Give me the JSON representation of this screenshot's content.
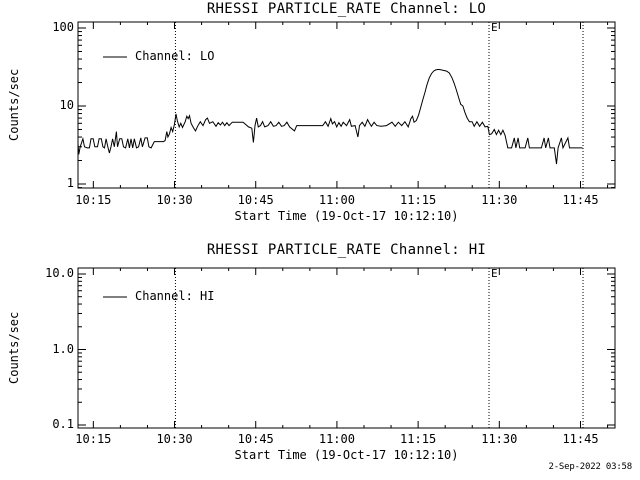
{
  "app": {
    "timestamp": "2-Sep-2022 03:58",
    "colors": {
      "background": "#ffffff",
      "foreground": "#000000"
    }
  },
  "chart_data": [
    {
      "type": "line",
      "title": "RHESSI PARTICLE_RATE Channel: LO",
      "ylabel": "Counts/sec",
      "xlabel": "Start Time (19-Oct-17 10:12:10)",
      "yscale": "log",
      "ylim": [
        1,
        100
      ],
      "grid": false,
      "legend": {
        "label": "Channel: LO",
        "position": "top-left"
      },
      "x_start_time": "10:12:10",
      "x_minor_step_minutes": 5,
      "x_ticks": [
        {
          "t": 2.833,
          "label": "10:15"
        },
        {
          "t": 17.833,
          "label": "10:30"
        },
        {
          "t": 32.833,
          "label": "10:45"
        },
        {
          "t": 47.833,
          "label": "11:00"
        },
        {
          "t": 62.833,
          "label": "11:15"
        },
        {
          "t": 77.833,
          "label": "11:30"
        },
        {
          "t": 92.833,
          "label": "11:45"
        }
      ],
      "y_ticks": [
        {
          "v": 100,
          "label": "100"
        },
        {
          "v": 10,
          "label": "10"
        },
        {
          "v": 1,
          "label": "1"
        }
      ],
      "event_lines": [
        {
          "t": 18.0,
          "flag": ""
        },
        {
          "t": 75.93,
          "flag": "E"
        },
        {
          "t": 93.3,
          "flag": ""
        }
      ],
      "series": [
        {
          "name": "Channel: LO",
          "points": [
            [
              0.0,
              3.3
            ],
            [
              0.15,
              2.4
            ],
            [
              0.4,
              3.0
            ],
            [
              0.9,
              3.8
            ],
            [
              1.2,
              3.0
            ],
            [
              1.7,
              2.9
            ],
            [
              2.1,
              2.9
            ],
            [
              2.4,
              3.8
            ],
            [
              2.8,
              3.8
            ],
            [
              3.1,
              3.0
            ],
            [
              3.6,
              3.0
            ],
            [
              3.9,
              3.8
            ],
            [
              4.3,
              3.8
            ],
            [
              4.6,
              3.0
            ],
            [
              4.9,
              2.9
            ],
            [
              5.2,
              3.8
            ],
            [
              5.5,
              3.0
            ],
            [
              5.8,
              2.5
            ],
            [
              6.1,
              3.0
            ],
            [
              6.4,
              3.8
            ],
            [
              6.7,
              3.0
            ],
            [
              7.1,
              4.7
            ],
            [
              7.3,
              3.0
            ],
            [
              7.7,
              3.8
            ],
            [
              8.1,
              3.8
            ],
            [
              8.4,
              3.0
            ],
            [
              8.8,
              2.9
            ],
            [
              9.2,
              3.8
            ],
            [
              9.5,
              2.9
            ],
            [
              9.8,
              3.8
            ],
            [
              10.1,
              2.9
            ],
            [
              10.4,
              3.8
            ],
            [
              10.8,
              2.9
            ],
            [
              11.2,
              3.0
            ],
            [
              11.6,
              3.9
            ],
            [
              11.9,
              3.0
            ],
            [
              12.4,
              3.9
            ],
            [
              12.8,
              3.9
            ],
            [
              13.1,
              3.0
            ],
            [
              13.5,
              2.9
            ],
            [
              14.1,
              3.5
            ],
            [
              15.0,
              3.5
            ],
            [
              15.8,
              3.5
            ],
            [
              16.1,
              3.6
            ],
            [
              16.4,
              4.7
            ],
            [
              16.6,
              4.0
            ],
            [
              16.9,
              4.4
            ],
            [
              17.2,
              5.3
            ],
            [
              17.5,
              4.7
            ],
            [
              17.8,
              5.8
            ],
            [
              18.1,
              7.9
            ],
            [
              18.35,
              6.5
            ],
            [
              18.7,
              5.4
            ],
            [
              19.0,
              6.0
            ],
            [
              19.3,
              5.3
            ],
            [
              19.8,
              6.3
            ],
            [
              20.1,
              7.4
            ],
            [
              20.35,
              6.9
            ],
            [
              20.6,
              7.5
            ],
            [
              20.9,
              6.0
            ],
            [
              21.3,
              5.3
            ],
            [
              21.7,
              4.8
            ],
            [
              22.1,
              5.5
            ],
            [
              22.6,
              6.3
            ],
            [
              23.1,
              5.6
            ],
            [
              23.6,
              6.7
            ],
            [
              23.9,
              7.0
            ],
            [
              24.3,
              6.0
            ],
            [
              24.9,
              6.3
            ],
            [
              25.5,
              5.5
            ],
            [
              25.9,
              6.1
            ],
            [
              26.3,
              5.7
            ],
            [
              26.7,
              6.2
            ],
            [
              27.1,
              5.6
            ],
            [
              27.5,
              6.1
            ],
            [
              27.9,
              5.6
            ],
            [
              28.5,
              6.2
            ],
            [
              30.5,
              6.2
            ],
            [
              31.5,
              5.4
            ],
            [
              32.1,
              5.2
            ],
            [
              32.4,
              3.4
            ],
            [
              32.7,
              5.6
            ],
            [
              33.0,
              7.0
            ],
            [
              33.3,
              5.4
            ],
            [
              33.7,
              5.6
            ],
            [
              34.1,
              6.3
            ],
            [
              34.5,
              5.4
            ],
            [
              35.1,
              5.6
            ],
            [
              35.6,
              6.3
            ],
            [
              36.1,
              5.5
            ],
            [
              36.6,
              5.6
            ],
            [
              37.1,
              6.2
            ],
            [
              37.6,
              5.5
            ],
            [
              38.1,
              5.6
            ],
            [
              38.6,
              6.2
            ],
            [
              39.1,
              5.4
            ],
            [
              40.0,
              4.8
            ],
            [
              40.4,
              5.6
            ],
            [
              43.0,
              5.6
            ],
            [
              45.2,
              5.6
            ],
            [
              45.7,
              6.3
            ],
            [
              46.2,
              5.5
            ],
            [
              46.7,
              6.9
            ],
            [
              47.0,
              5.9
            ],
            [
              47.4,
              6.3
            ],
            [
              47.8,
              5.4
            ],
            [
              48.2,
              6.1
            ],
            [
              48.6,
              5.5
            ],
            [
              49.0,
              6.2
            ],
            [
              49.6,
              5.6
            ],
            [
              50.2,
              6.7
            ],
            [
              50.5,
              5.5
            ],
            [
              51.2,
              5.6
            ],
            [
              51.7,
              4.0
            ],
            [
              52.0,
              5.6
            ],
            [
              52.5,
              6.2
            ],
            [
              53.0,
              5.5
            ],
            [
              53.5,
              6.7
            ],
            [
              53.8,
              6.1
            ],
            [
              54.2,
              5.5
            ],
            [
              54.7,
              6.2
            ],
            [
              55.2,
              5.6
            ],
            [
              56.0,
              5.5
            ],
            [
              57.0,
              5.6
            ],
            [
              58.0,
              6.2
            ],
            [
              58.6,
              5.5
            ],
            [
              59.2,
              6.2
            ],
            [
              59.8,
              5.6
            ],
            [
              60.4,
              6.3
            ],
            [
              61.0,
              5.4
            ],
            [
              61.5,
              6.9
            ],
            [
              61.8,
              7.4
            ],
            [
              62.1,
              6.2
            ],
            [
              62.5,
              6.5
            ],
            [
              62.9,
              7.6
            ],
            [
              63.3,
              9.5
            ],
            [
              63.7,
              12
            ],
            [
              64.1,
              15
            ],
            [
              64.5,
              19
            ],
            [
              64.9,
              23
            ],
            [
              65.3,
              26
            ],
            [
              65.7,
              28
            ],
            [
              66.1,
              29
            ],
            [
              66.6,
              29.5
            ],
            [
              67.1,
              29
            ],
            [
              67.6,
              28.5
            ],
            [
              68.1,
              28
            ],
            [
              68.6,
              26.5
            ],
            [
              69.1,
              23
            ],
            [
              69.5,
              19.5
            ],
            [
              69.9,
              16
            ],
            [
              70.3,
              13
            ],
            [
              70.7,
              10.5
            ],
            [
              71.1,
              10
            ],
            [
              71.5,
              8.2
            ],
            [
              71.9,
              7.0
            ],
            [
              72.3,
              6.3
            ],
            [
              72.8,
              6.3
            ],
            [
              73.2,
              5.5
            ],
            [
              73.7,
              6.3
            ],
            [
              74.2,
              5.5
            ],
            [
              74.7,
              6.2
            ],
            [
              75.2,
              5.4
            ],
            [
              75.7,
              5.5
            ],
            [
              76.0,
              4.3
            ],
            [
              76.4,
              4.4
            ],
            [
              76.9,
              5.0
            ],
            [
              77.3,
              4.3
            ],
            [
              77.7,
              4.9
            ],
            [
              78.1,
              4.3
            ],
            [
              78.5,
              4.9
            ],
            [
              78.9,
              4.2
            ],
            [
              79.4,
              2.9
            ],
            [
              80.1,
              2.9
            ],
            [
              80.6,
              3.9
            ],
            [
              80.9,
              2.9
            ],
            [
              81.3,
              3.9
            ],
            [
              81.6,
              2.9
            ],
            [
              82.6,
              2.9
            ],
            [
              83.1,
              3.9
            ],
            [
              83.4,
              2.9
            ],
            [
              84.6,
              2.9
            ],
            [
              85.6,
              2.9
            ],
            [
              86.1,
              3.9
            ],
            [
              86.4,
              2.9
            ],
            [
              86.9,
              3.9
            ],
            [
              87.2,
              2.9
            ],
            [
              88.0,
              2.9
            ],
            [
              88.4,
              1.8
            ],
            [
              88.7,
              2.9
            ],
            [
              89.3,
              3.9
            ],
            [
              89.6,
              2.9
            ],
            [
              90.5,
              3.9
            ],
            [
              90.8,
              2.9
            ],
            [
              93.2,
              2.9
            ]
          ]
        }
      ]
    },
    {
      "type": "line",
      "title": "RHESSI PARTICLE_RATE Channel: HI",
      "ylabel": "Counts/sec",
      "xlabel": "Start Time (19-Oct-17 10:12:10)",
      "yscale": "log",
      "ylim": [
        0.1,
        10
      ],
      "grid": false,
      "legend": {
        "label": "Channel: HI",
        "position": "top-left"
      },
      "x_start_time": "10:12:10",
      "x_minor_step_minutes": 5,
      "x_ticks": [
        {
          "t": 2.833,
          "label": "10:15"
        },
        {
          "t": 17.833,
          "label": "10:30"
        },
        {
          "t": 32.833,
          "label": "10:45"
        },
        {
          "t": 47.833,
          "label": "11:00"
        },
        {
          "t": 62.833,
          "label": "11:15"
        },
        {
          "t": 77.833,
          "label": "11:30"
        },
        {
          "t": 92.833,
          "label": "11:45"
        }
      ],
      "y_ticks": [
        {
          "v": 10,
          "label": "10.0"
        },
        {
          "v": 1,
          "label": "1.0"
        },
        {
          "v": 0.1,
          "label": "0.1"
        }
      ],
      "event_lines": [
        {
          "t": 18.0,
          "flag": ""
        },
        {
          "t": 75.93,
          "flag": "E"
        },
        {
          "t": 93.3,
          "flag": ""
        }
      ],
      "series": [
        {
          "name": "Channel: HI",
          "points": []
        }
      ]
    }
  ]
}
